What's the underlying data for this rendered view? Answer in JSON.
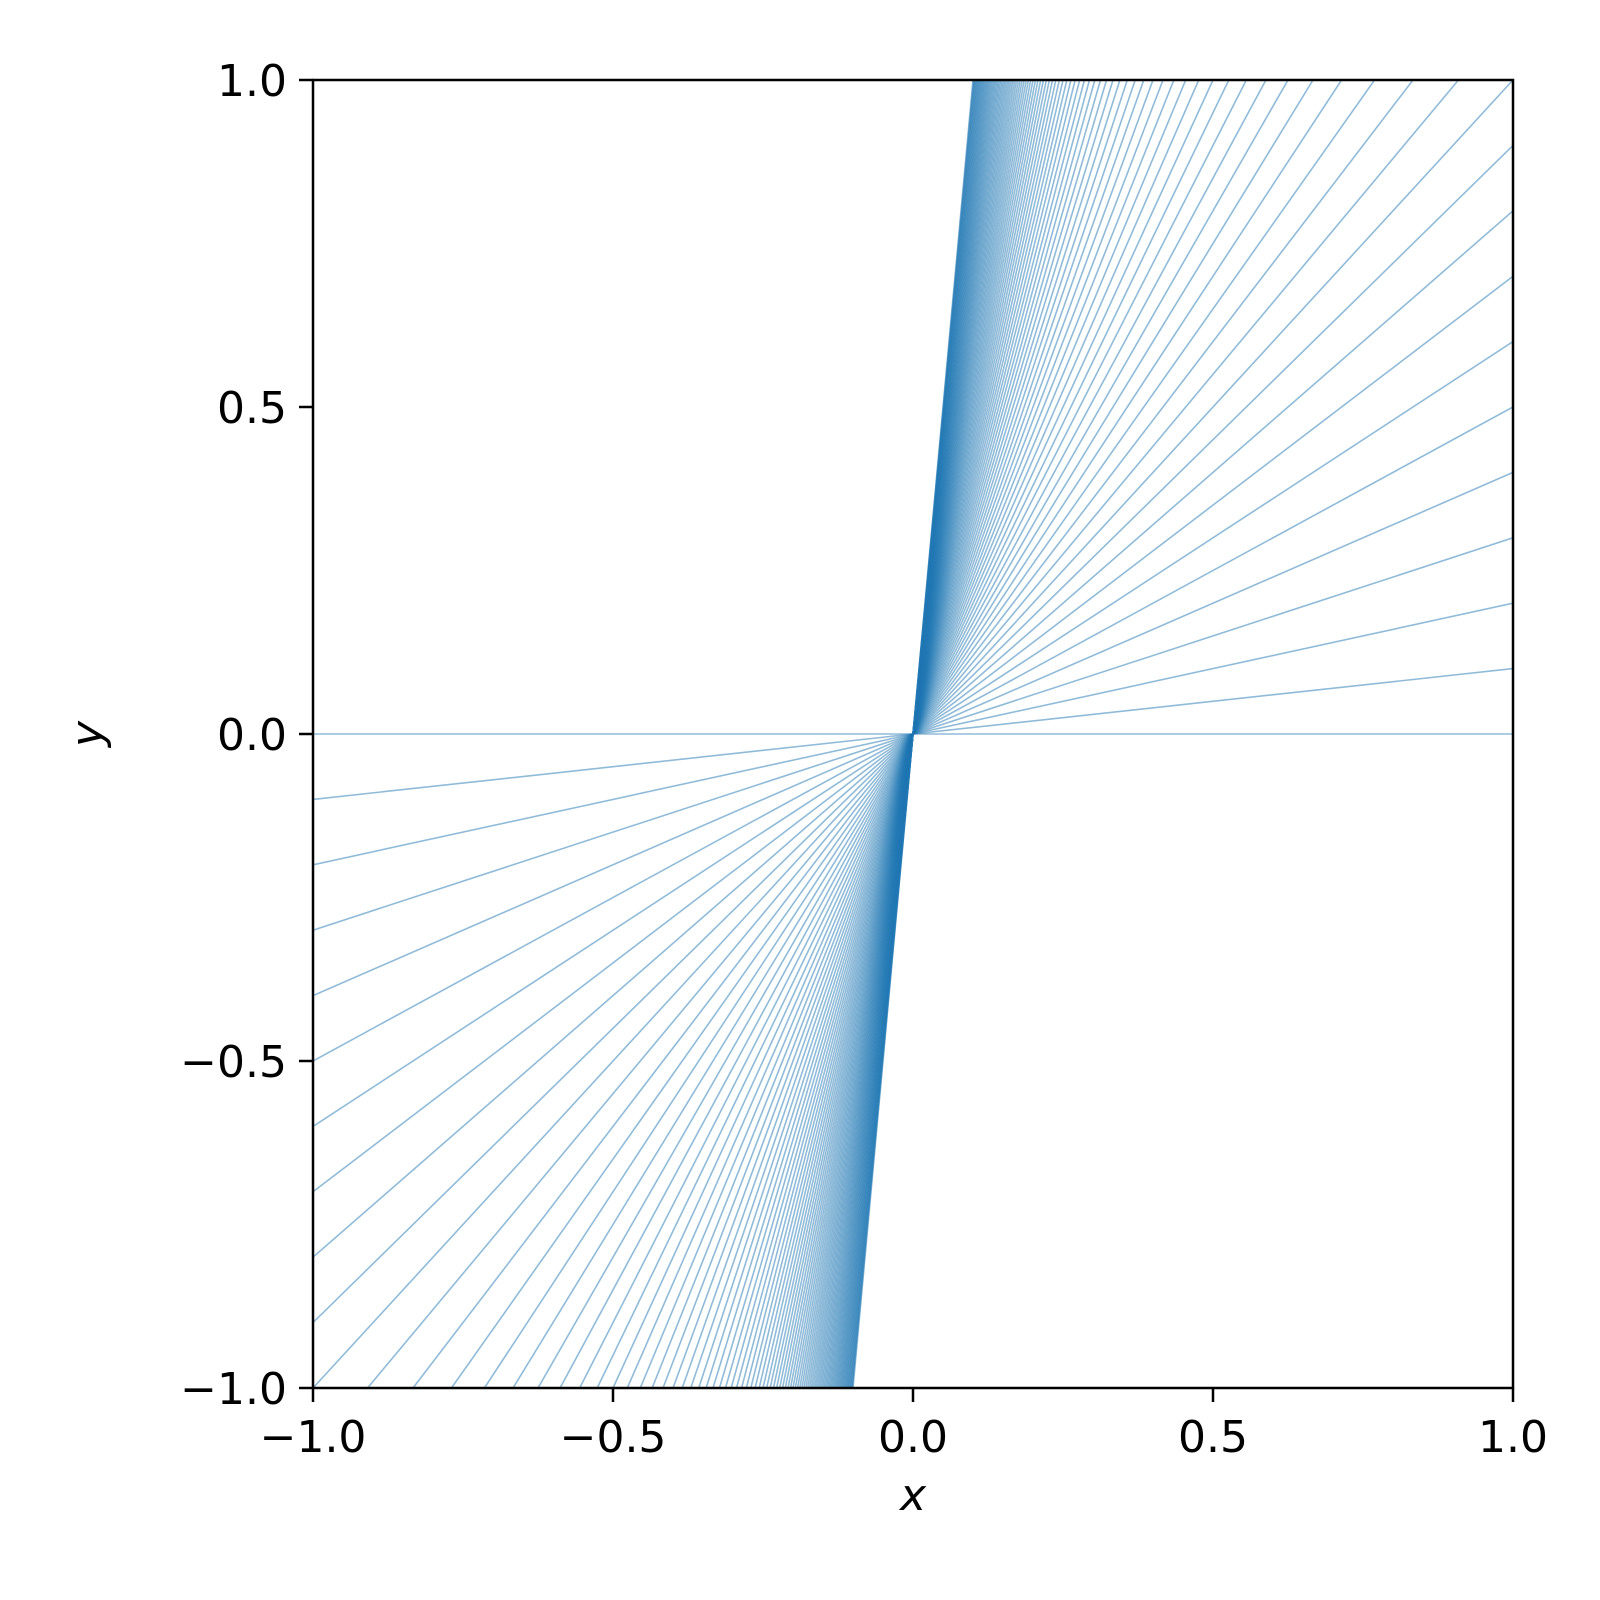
{
  "chart_data": {
    "type": "line",
    "description_of_series": "Lines y = m * x through origin with slopes m = 0..10 in steps of 0.1",
    "slope_min": 0,
    "slope_max": 10,
    "slope_step": 0.1,
    "xlabel": "x",
    "ylabel": "y",
    "xlim": [
      -1.0,
      1.0
    ],
    "ylim": [
      -1.0,
      1.0
    ],
    "xticks": [
      -1.0,
      -0.5,
      0.0,
      0.5,
      1.0
    ],
    "yticks": [
      -1.0,
      -0.5,
      0.0,
      0.5,
      1.0
    ],
    "xtick_labels": [
      "−1.0",
      "−0.5",
      "0.0",
      "0.5",
      "1.0"
    ],
    "ytick_labels": [
      "−1.0",
      "−0.5",
      "0.0",
      "0.5",
      "1.0"
    ],
    "grid": false,
    "line_color": "#1f77b4",
    "line_opacity": 0.5
  }
}
